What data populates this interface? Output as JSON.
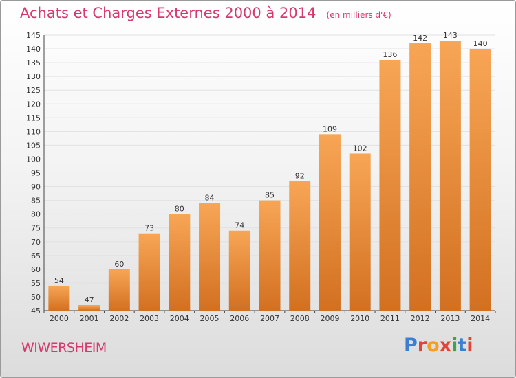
{
  "header": {
    "title": "Achats et Charges Externes 2000 à 2014",
    "unit": "(en milliers d'€)"
  },
  "footer": {
    "commune": "WIWERSHEIM",
    "logo_text": "Proxiti",
    "logo_colors": [
      "#3a7fd4",
      "#e0453a",
      "#f2a01e",
      "#e0453a",
      "#3aa64a",
      "#3a7fd4",
      "#e0453a"
    ]
  },
  "colors": {
    "bar_top": "#f7a656",
    "bar_bottom": "#d27020",
    "title": "#d63a6c"
  },
  "chart_data": {
    "type": "bar",
    "categories": [
      "2000",
      "2001",
      "2002",
      "2003",
      "2004",
      "2005",
      "2006",
      "2007",
      "2008",
      "2009",
      "2010",
      "2011",
      "2012",
      "2013",
      "2014"
    ],
    "values": [
      54,
      47,
      60,
      73,
      80,
      84,
      74,
      85,
      92,
      109,
      102,
      136,
      142,
      143,
      140
    ],
    "ylim": [
      45,
      145
    ],
    "yticks": [
      45,
      50,
      55,
      60,
      65,
      70,
      75,
      80,
      85,
      90,
      95,
      100,
      105,
      110,
      115,
      120,
      125,
      130,
      135,
      140,
      145
    ],
    "grid": true,
    "data_labels": true
  }
}
